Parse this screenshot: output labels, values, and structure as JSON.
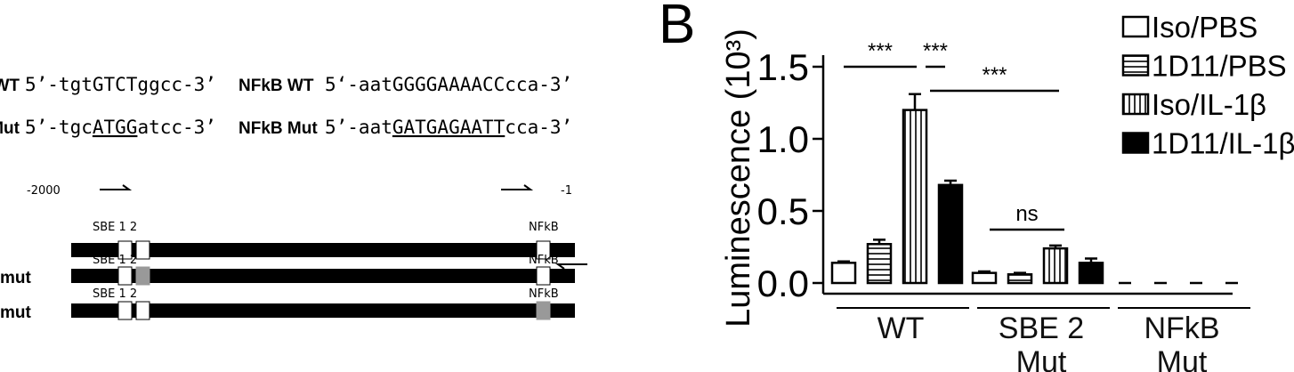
{
  "sequences": {
    "sbe_wt": {
      "label": "WT",
      "parts": [
        "5’-tgtGTCTggcc-3’"
      ]
    },
    "sbe_mut": {
      "label": "Mut",
      "parts": [
        "5’-tgc",
        "ATGG",
        "atcc-3’"
      ]
    },
    "nfkb_wt": {
      "label": "NFkB WT",
      "parts": [
        "5‘-aatGGGGAAAACCcca-3’"
      ]
    },
    "nfkb_mut": {
      "label": "NFkB Mut",
      "parts": [
        "5’-aat",
        "GATGAGAATT",
        "cca-3’"
      ]
    }
  },
  "diagram": {
    "start": "-2000",
    "end": "-1",
    "constructs": [
      {
        "sbe": "SBE 1 2",
        "nfkb": "NFkB"
      },
      {
        "label": "mut",
        "sbe": "SBE 1 2",
        "nfkb": "NFkB"
      },
      {
        "label": "mut",
        "sbe": "SBE 1 2",
        "nfkb": "NFkB"
      }
    ]
  },
  "chart_data": {
    "type": "bar",
    "panel_label": "B",
    "y_label": "Luminescence (10³)",
    "categories": [
      "WT",
      "SBE 2 Mut",
      "NFkB Mut"
    ],
    "series": [
      {
        "name": "Iso/PBS",
        "color": "#ffffff",
        "hatch": "none",
        "values": [
          0.14,
          0.07,
          0
        ],
        "errors": [
          0.01,
          0.01,
          0
        ]
      },
      {
        "name": "1D11/PBS",
        "color": "#ffffff",
        "hatch": "horizontal",
        "values": [
          0.27,
          0.06,
          0
        ],
        "errors": [
          0.03,
          0.01,
          0
        ]
      },
      {
        "name": "Iso/IL-1β",
        "color": "#ffffff",
        "hatch": "vertical",
        "values": [
          1.2,
          0.24,
          0
        ],
        "errors": [
          0.11,
          0.02,
          0
        ]
      },
      {
        "name": "1D11/IL-1β",
        "color": "#000000",
        "hatch": "none",
        "values": [
          0.68,
          0.14,
          0
        ],
        "errors": [
          0.03,
          0.03,
          0
        ]
      }
    ],
    "ylim": [
      0,
      1.5
    ],
    "yticks": [
      {
        "value": 0,
        "label": "0.0"
      },
      {
        "value": 0.5,
        "label": "0.5"
      },
      {
        "value": 1,
        "label": "1.0"
      },
      {
        "value": 1.5,
        "label": "1.5"
      }
    ],
    "annotations": [
      {
        "text": "***"
      },
      {
        "text": "***"
      },
      {
        "text": "***"
      },
      {
        "text": "ns"
      }
    ]
  }
}
